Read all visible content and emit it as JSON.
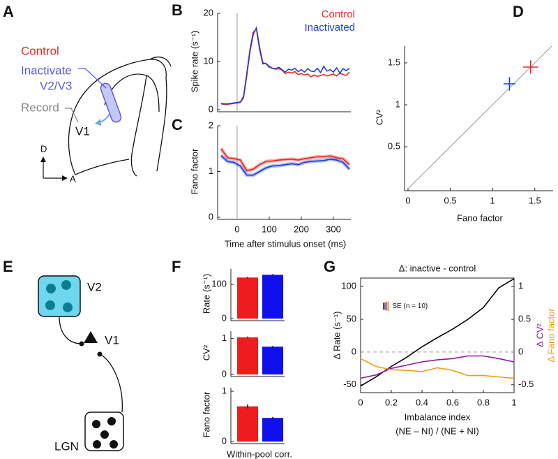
{
  "panel_labels": [
    "A",
    "B",
    "C",
    "D",
    "E",
    "F",
    "G"
  ],
  "diagram_a": {
    "control": "Control",
    "inactivate": "Inactivate",
    "area": "V2/V3",
    "record": "Record",
    "v1": "V1",
    "dorsal": "D",
    "anterior": "A"
  },
  "diagram_e": {
    "top": "V2",
    "middle": "V1",
    "bottom": "LGN"
  },
  "chart_data": [
    {
      "type": "line",
      "ylabel": "Spike rate (s⁻¹)",
      "xlim": [
        -50,
        350
      ],
      "ylim": [
        0,
        20
      ],
      "yticks": [
        0,
        10,
        20
      ],
      "vline": 0,
      "x": [
        -50,
        -40,
        -30,
        -20,
        -10,
        0,
        10,
        20,
        30,
        40,
        50,
        60,
        70,
        80,
        90,
        100,
        110,
        120,
        130,
        140,
        150,
        160,
        170,
        180,
        190,
        200,
        210,
        220,
        230,
        240,
        250,
        260,
        270,
        280,
        290,
        300,
        310,
        320,
        330,
        340,
        350
      ],
      "series": [
        {
          "name": "Control",
          "color": "#e8261f",
          "values": [
            1.2,
            1.1,
            1.1,
            1.2,
            1.3,
            1.4,
            1.5,
            2.5,
            7,
            12,
            15.5,
            17,
            13,
            9.8,
            9.5,
            8.8,
            8.6,
            8.4,
            8.5,
            8.2,
            7.5,
            7.8,
            7.6,
            7.9,
            7.3,
            7.5,
            7.2,
            7.4,
            6.8,
            7.2,
            6.9,
            7.1,
            7.3,
            7.0,
            7.2,
            7.4,
            7.0,
            7.6,
            7.3,
            7.1,
            7.8
          ]
        },
        {
          "name": "Inactivated",
          "color": "#1c3fdc",
          "values": [
            1.3,
            1.2,
            1.2,
            1.3,
            1.4,
            1.5,
            1.6,
            2.8,
            7.5,
            12.5,
            16,
            16.8,
            12.5,
            9.5,
            9.6,
            9.0,
            8.6,
            8.5,
            8.8,
            8.3,
            7.8,
            8.4,
            8.2,
            8.6,
            7.9,
            8.3,
            7.8,
            8.5,
            8.0,
            7.9,
            8.6,
            7.7,
            9.0,
            8.0,
            8.3,
            7.8,
            8.7,
            7.6,
            8.5,
            8.1,
            8.6
          ]
        }
      ]
    },
    {
      "type": "line",
      "ylabel": "Fano factor",
      "xlabel": "Time after stimulus onset (ms)",
      "xlim": [
        -50,
        350
      ],
      "ylim": [
        0,
        2
      ],
      "yticks": [
        0,
        1,
        2
      ],
      "xticks": [
        0,
        100,
        200,
        300
      ],
      "vline": 0,
      "x": [
        -50,
        -30,
        -10,
        10,
        30,
        50,
        70,
        90,
        110,
        130,
        150,
        170,
        190,
        210,
        230,
        250,
        270,
        290,
        310,
        330,
        350
      ],
      "series": [
        {
          "color": "#e8261f",
          "values": [
            1.5,
            1.3,
            1.28,
            1.25,
            1.02,
            1.05,
            1.15,
            1.22,
            1.23,
            1.25,
            1.26,
            1.27,
            1.25,
            1.28,
            1.3,
            1.32,
            1.32,
            1.34,
            1.3,
            1.28,
            1.15
          ]
        },
        {
          "color": "#1c3fdc",
          "values": [
            1.35,
            1.22,
            1.2,
            1.12,
            0.92,
            0.92,
            1.0,
            1.08,
            1.12,
            1.13,
            1.15,
            1.17,
            1.15,
            1.2,
            1.22,
            1.23,
            1.24,
            1.27,
            1.25,
            1.2,
            1.05
          ]
        }
      ]
    },
    {
      "type": "scatter",
      "xlabel": "Fano factor",
      "ylabel": "CV²",
      "xlim": [
        0,
        1.7
      ],
      "ylim": [
        0,
        1.7
      ],
      "xticks": [
        0,
        0.5,
        1,
        1.5
      ],
      "yticks": [
        0.5,
        1,
        1.5
      ],
      "identity_line": true,
      "series": [
        {
          "color": "#1c3fdc",
          "x": [
            1.2
          ],
          "values": [
            1.25
          ],
          "xerr": [
            0.07
          ],
          "yerr": [
            0.08
          ]
        },
        {
          "color": "#e8261f",
          "x": [
            1.45
          ],
          "values": [
            1.45
          ],
          "xerr": [
            0.09
          ],
          "yerr": [
            0.08
          ]
        }
      ]
    },
    {
      "type": "bar",
      "ylabel": "Rate (s⁻¹)",
      "ylim": [
        0,
        145
      ],
      "yticks": [
        0,
        100
      ],
      "values": [
        120,
        128
      ],
      "errors": [
        2,
        2
      ],
      "colors": [
        "#ee1c1c",
        "#1010ee"
      ]
    },
    {
      "type": "bar",
      "ylabel": "CV²",
      "ylim": [
        0,
        1.2
      ],
      "yticks": [
        0,
        1
      ],
      "values": [
        1.03,
        0.77
      ],
      "errors": [
        0.02,
        0.02
      ],
      "colors": [
        "#ee1c1c",
        "#1010ee"
      ]
    },
    {
      "type": "bar",
      "ylabel": "Fano factor",
      "xlabel": "Within-pool corr.",
      "ylim": [
        0,
        1.07
      ],
      "yticks": [
        0,
        1
      ],
      "values": [
        0.7,
        0.47
      ],
      "errors": [
        0.04,
        0.02
      ],
      "colors": [
        "#ee1c1c",
        "#1010ee"
      ]
    },
    {
      "type": "line",
      "title": "Δ: inactive - control",
      "ylabel": "Δ Rate (s⁻¹)",
      "y2labels": [
        "Δ CV²",
        "Δ Fano factor"
      ],
      "xlabel": "Imbalance index",
      "xlabel2": "(NE – NI) / (NE + NI)",
      "annotation": "SE (n = 10)",
      "hline": 0,
      "xlim": [
        0,
        1
      ],
      "ylim": [
        -62,
        113
      ],
      "y2lim": [
        -0.62,
        1.13
      ],
      "xticks": [
        0,
        0.2,
        0.4,
        0.6,
        0.8,
        1
      ],
      "yticks": [
        -50,
        0,
        50,
        100
      ],
      "y2ticks": [
        -0.5,
        0,
        0.5,
        1
      ],
      "x": [
        0,
        0.1,
        0.2,
        0.3,
        0.4,
        0.5,
        0.6,
        0.7,
        0.8,
        0.9,
        1
      ],
      "series": [
        {
          "color": "#000000",
          "values": [
            -52,
            -38,
            -22,
            -8,
            8,
            22,
            35,
            50,
            68,
            98,
            112
          ]
        },
        {
          "color": "#8a1a9b",
          "axis": "y2",
          "values": [
            -0.4,
            -0.35,
            -0.25,
            -0.2,
            -0.15,
            -0.12,
            -0.1,
            -0.06,
            -0.06,
            -0.1,
            -0.15
          ]
        },
        {
          "color": "#f39a12",
          "axis": "y2",
          "values": [
            -0.1,
            -0.22,
            -0.27,
            -0.28,
            -0.3,
            -0.24,
            -0.28,
            -0.36,
            -0.36,
            -0.38,
            -0.4
          ]
        }
      ]
    }
  ]
}
